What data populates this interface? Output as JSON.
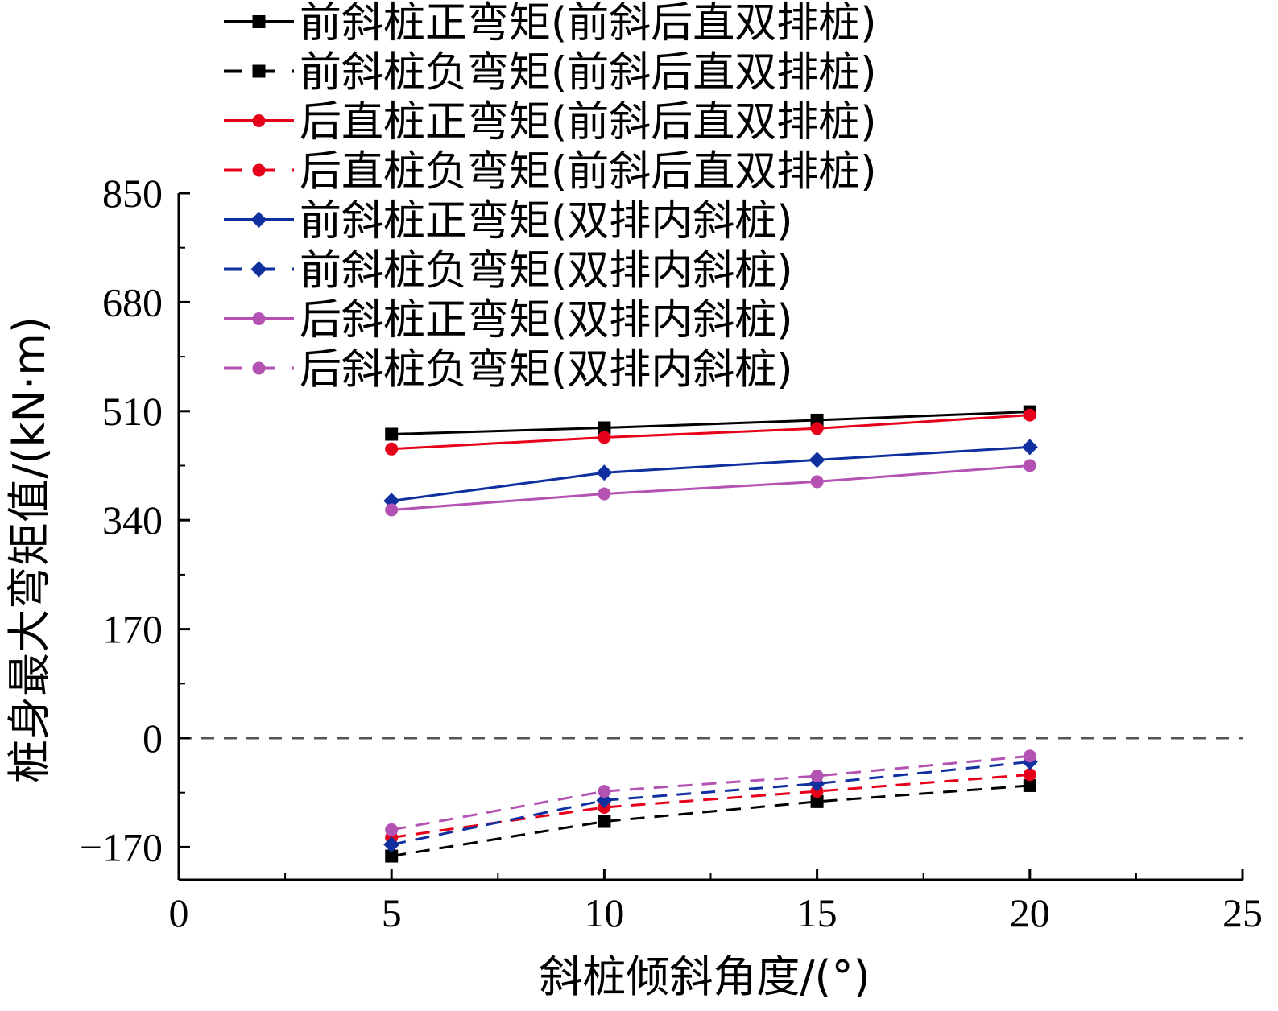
{
  "chart_data": {
    "type": "line",
    "title": "",
    "xlabel": "斜桩倾斜角度/(°)",
    "ylabel": "桩身最大弯矩值/(kN·m)",
    "xlim": [
      0,
      25
    ],
    "ylim": [
      -220,
      850
    ],
    "xticks": [
      "0",
      "5",
      "10",
      "15",
      "20",
      "25"
    ],
    "yticks": [
      "−170",
      "0",
      "170",
      "340",
      "510",
      "680",
      "850"
    ],
    "x": [
      5,
      10,
      15,
      20
    ],
    "grid": false,
    "legend_position": "top",
    "zero_line": true,
    "series": [
      {
        "name": "前斜桩正弯矩(前斜后直双排桩)",
        "values": [
          474,
          484,
          496,
          509
        ],
        "color": "#000000",
        "dash": "solid",
        "marker": "square"
      },
      {
        "name": "前斜桩负弯矩(前斜后直双排桩)",
        "values": [
          -184,
          -130,
          -99,
          -74
        ],
        "color": "#000000",
        "dash": "dashed",
        "marker": "square"
      },
      {
        "name": "后直桩正弯矩(前斜后直双排桩)",
        "values": [
          451,
          469,
          483,
          504
        ],
        "color": "#e6001a",
        "dash": "solid",
        "marker": "circle"
      },
      {
        "name": "后直桩负弯矩(前斜后直双排桩)",
        "values": [
          -155,
          -108,
          -83,
          -57
        ],
        "color": "#e6001a",
        "dash": "dashed",
        "marker": "circle"
      },
      {
        "name": "前斜桩正弯矩(双排内斜桩)",
        "values": [
          370,
          414,
          434,
          454
        ],
        "color": "#1030a0",
        "dash": "solid",
        "marker": "diamond"
      },
      {
        "name": "前斜桩负弯矩(双排内斜桩)",
        "values": [
          -166,
          -97,
          -71,
          -37
        ],
        "color": "#1030a0",
        "dash": "dashed",
        "marker": "diamond"
      },
      {
        "name": "后斜桩正弯矩(双排内斜桩)",
        "values": [
          356,
          381,
          400,
          425
        ],
        "color": "#b452b4",
        "dash": "solid",
        "marker": "circle"
      },
      {
        "name": "后斜桩负弯矩(双排内斜桩)",
        "values": [
          -143,
          -83,
          -59,
          -28
        ],
        "color": "#b452b4",
        "dash": "dashed",
        "marker": "circle"
      }
    ]
  }
}
